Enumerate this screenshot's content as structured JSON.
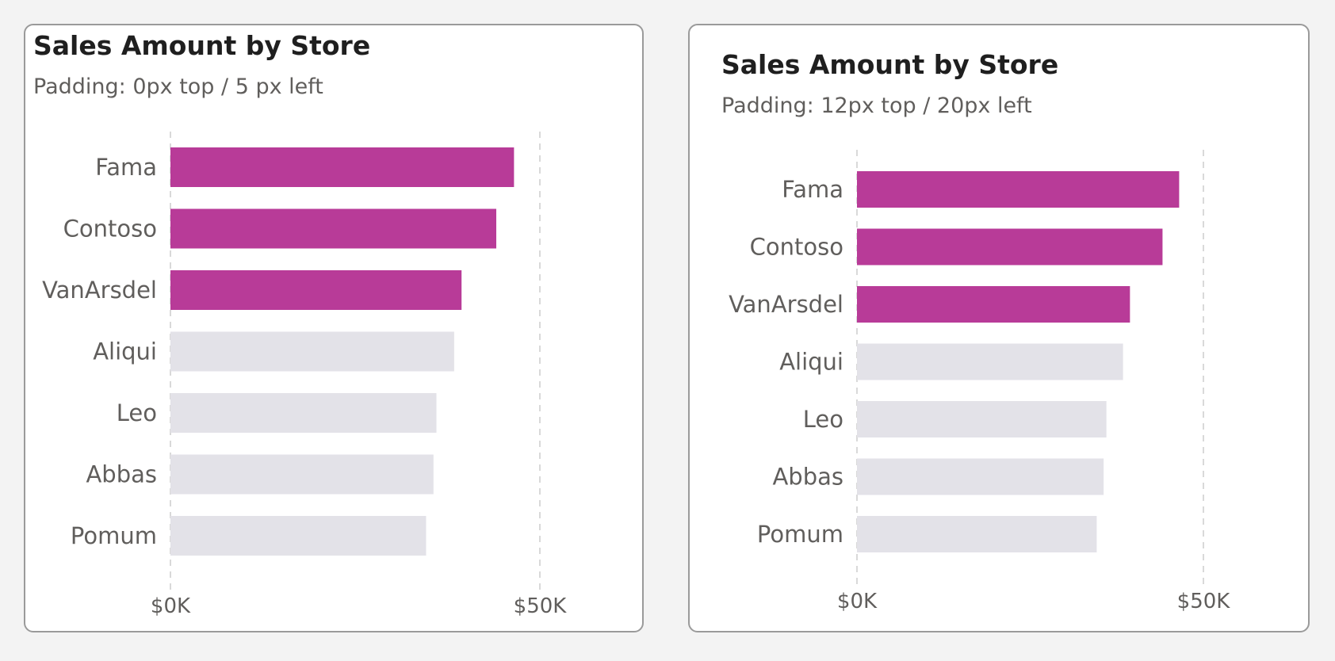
{
  "colors": {
    "highlight": "#b83b98",
    "muted": "#e3e2e8",
    "gridline": "#d9d9d9",
    "label": "#605e5c"
  },
  "cards": [
    {
      "title": "Sales Amount by Store",
      "subtitle": "Padding: 0px top / 5 px left"
    },
    {
      "title": "Sales Amount by Store",
      "subtitle": "Padding: 12px top / 20px left"
    }
  ],
  "chart_data": [
    {
      "type": "bar",
      "orientation": "horizontal",
      "title": "Sales Amount by Store",
      "subtitle": "Padding: 0px top / 5 px left",
      "categories": [
        "Fama",
        "Contoso",
        "VanArsdel",
        "Aliqui",
        "Leo",
        "Abbas",
        "Pomum"
      ],
      "values": [
        46500,
        44100,
        39400,
        38400,
        36000,
        35600,
        34600
      ],
      "highlighted": [
        true,
        true,
        true,
        false,
        false,
        false,
        false
      ],
      "xlim": [
        0,
        50000
      ],
      "xticks": [
        0,
        50000
      ],
      "xtick_labels": [
        "$0K",
        "$50K"
      ],
      "grid": true
    },
    {
      "type": "bar",
      "orientation": "horizontal",
      "title": "Sales Amount by Store",
      "subtitle": "Padding: 12px top / 20px left",
      "categories": [
        "Fama",
        "Contoso",
        "VanArsdel",
        "Aliqui",
        "Leo",
        "Abbas",
        "Pomum"
      ],
      "values": [
        46500,
        44100,
        39400,
        38400,
        36000,
        35600,
        34600
      ],
      "highlighted": [
        true,
        true,
        true,
        false,
        false,
        false,
        false
      ],
      "xlim": [
        0,
        50000
      ],
      "xticks": [
        0,
        50000
      ],
      "xtick_labels": [
        "$0K",
        "$50K"
      ],
      "grid": true
    }
  ]
}
